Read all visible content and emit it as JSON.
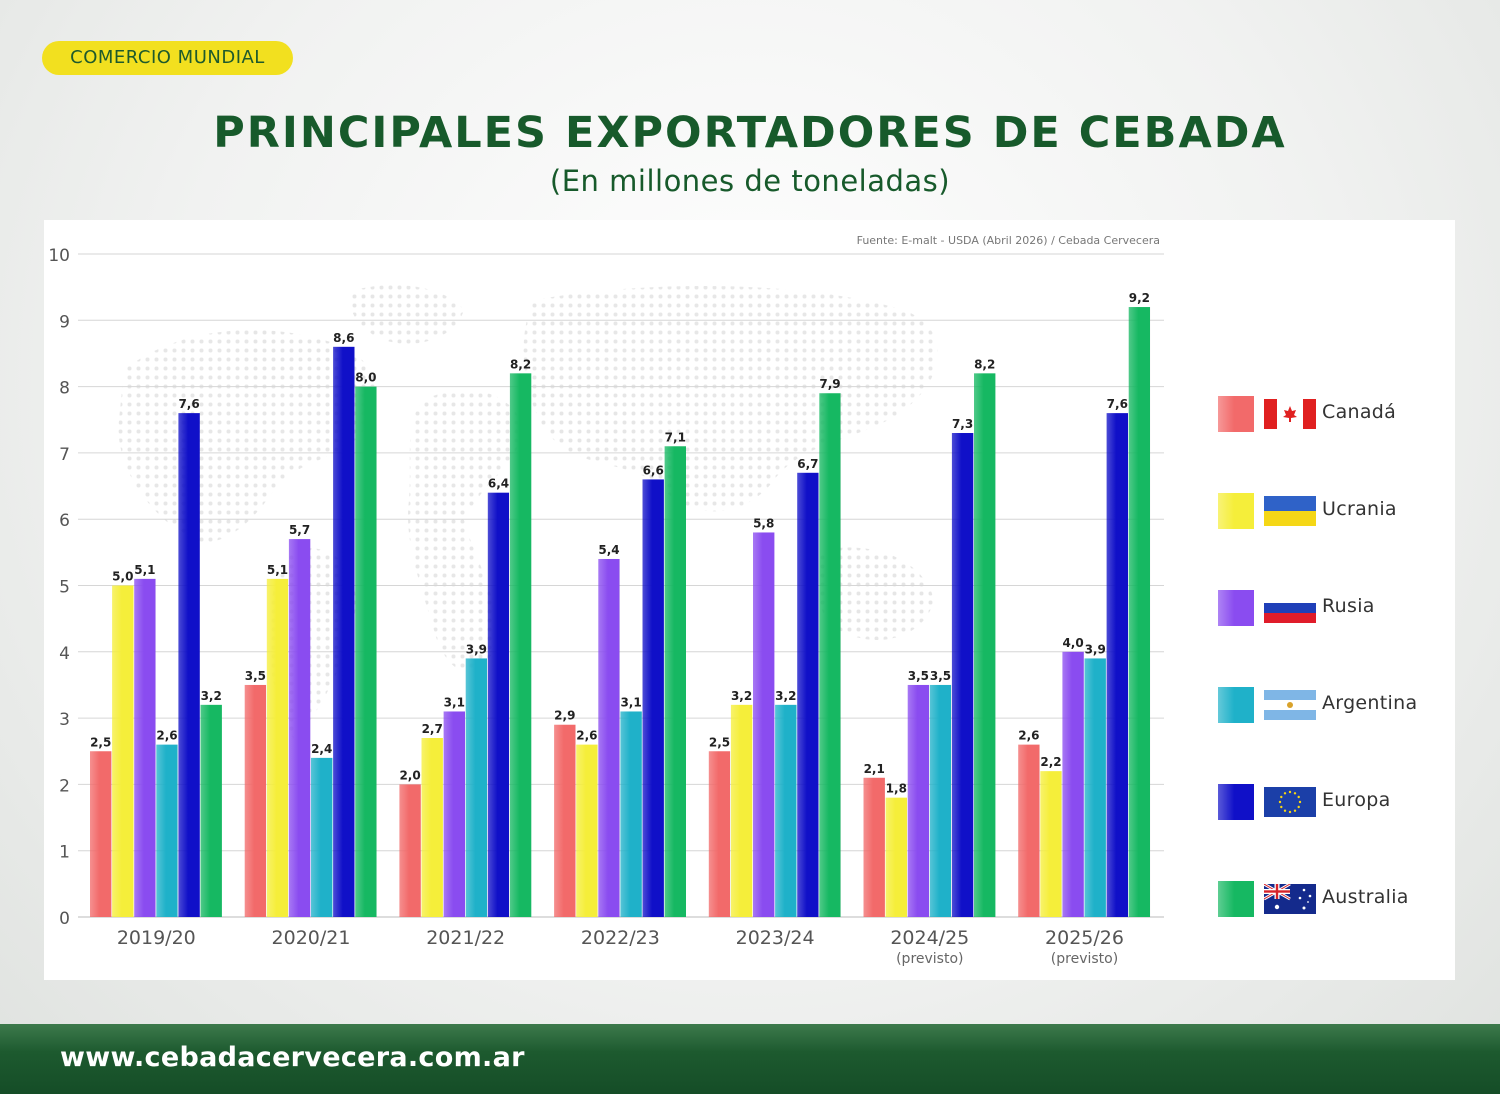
{
  "header": {
    "badge": "COMERCIO MUNDIAL",
    "title": "PRINCIPALES EXPORTADORES DE CEBADA",
    "subtitle": "(En millones de toneladas)"
  },
  "source": "Fuente: E-malt - USDA (Abril 2026) / Cebada Cervecera",
  "footer": {
    "url": "www.cebadacervecera.com.ar"
  },
  "chart_data": {
    "type": "bar",
    "categories": [
      "2019/20",
      "2020/21",
      "2021/22",
      "2022/23",
      "2023/24",
      "2024/25",
      "2025/26"
    ],
    "category_notes": [
      "",
      "",
      "",
      "",
      "",
      "(previsto)",
      "(previsto)"
    ],
    "ylim": [
      0,
      10
    ],
    "yticks": [
      0,
      1,
      2,
      3,
      4,
      5,
      6,
      7,
      8,
      9,
      10
    ],
    "grid": true,
    "legend_position": "right",
    "series": [
      {
        "name": "Canadá",
        "color": "#f26a6a",
        "flag": "canada",
        "values": [
          2.5,
          3.5,
          2.0,
          2.9,
          2.5,
          2.1,
          2.6
        ],
        "labels": [
          "2,5",
          "3,5",
          "2,0",
          "2,9",
          "2,5",
          "2,1",
          "2,6"
        ]
      },
      {
        "name": "Ucrania",
        "color": "#f5ee3a",
        "flag": "ukraine",
        "values": [
          5.0,
          5.1,
          2.7,
          2.6,
          3.2,
          1.8,
          2.2
        ],
        "labels": [
          "5,0",
          "5,1",
          "2,7",
          "2,6",
          "3,2",
          "1,8",
          "2,2"
        ]
      },
      {
        "name": "Rusia",
        "color": "#8a4cf0",
        "flag": "russia",
        "values": [
          5.1,
          5.7,
          3.1,
          5.4,
          5.8,
          3.5,
          4.0
        ],
        "labels": [
          "5,1",
          "5,7",
          "3,1",
          "5,4",
          "5,8",
          "3,5",
          "4,0"
        ]
      },
      {
        "name": "Argentina",
        "color": "#1fb1c9",
        "flag": "argentina",
        "values": [
          2.6,
          2.4,
          3.9,
          3.1,
          3.2,
          3.5,
          3.9
        ],
        "labels": [
          "2,6",
          "2,4",
          "3,9",
          "3,1",
          "3,2",
          "3,5",
          "3,9"
        ]
      },
      {
        "name": "Europa",
        "color": "#1010c8",
        "flag": "eu",
        "values": [
          7.6,
          8.6,
          6.4,
          6.6,
          6.7,
          7.3,
          7.6
        ],
        "labels": [
          "7,6",
          "8,6",
          "6,4",
          "6,6",
          "6,7",
          "7,3",
          "7,6"
        ]
      },
      {
        "name": "Australia",
        "color": "#16b862",
        "flag": "australia",
        "values": [
          3.2,
          8.0,
          8.2,
          7.1,
          7.9,
          8.2,
          9.2
        ],
        "labels": [
          "3,2",
          "8,0",
          "8,2",
          "7,1",
          "7,9",
          "8,2",
          "9,2"
        ]
      }
    ]
  }
}
